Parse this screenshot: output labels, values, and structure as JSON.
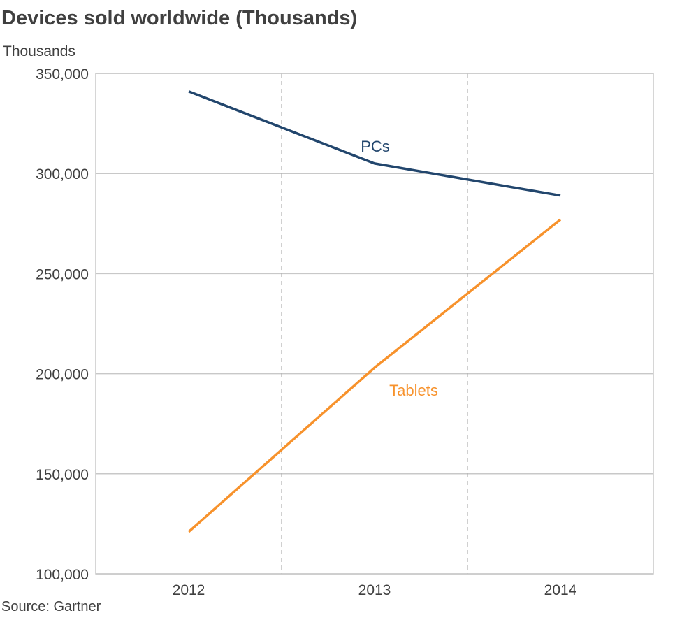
{
  "chart_data": {
    "type": "line",
    "title": "Devices sold worldwide (Thousands)",
    "ylabel": "Thousands",
    "xlabel": "",
    "categories": [
      "2012",
      "2013",
      "2014"
    ],
    "ylim": [
      100000,
      350000
    ],
    "yticks": [
      100000,
      150000,
      200000,
      250000,
      300000,
      350000
    ],
    "ytick_labels": [
      "100,000",
      "150,000",
      "200,000",
      "250,000",
      "300,000",
      "350,000"
    ],
    "grid": true,
    "series": [
      {
        "name": "PCs",
        "values": [
          341000,
          305000,
          289000
        ],
        "color": "#22466d"
      },
      {
        "name": "Tablets",
        "values": [
          121000,
          203000,
          277000
        ],
        "color": "#f7922c"
      }
    ],
    "source": "Source: Gartner"
  }
}
